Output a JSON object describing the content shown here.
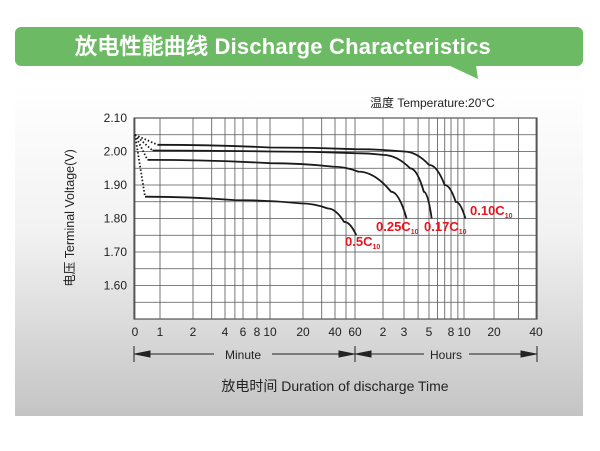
{
  "header": {
    "title": "放电性能曲线 Discharge Characteristics"
  },
  "colors": {
    "banner": "#6cbb64",
    "label_red": "#e8141c",
    "curve": "#1a1a1a"
  },
  "chart_data": {
    "type": "line",
    "temperature_note": "温度  Temperature:20°C",
    "ylabel": "电压 Terminal Voltage(V)",
    "xlabel": "放电时间  Duration of discharge Time",
    "x_unit_minute": "Minute",
    "x_unit_hours": "Hours",
    "ylim": [
      1.5,
      2.1
    ],
    "y_ticks": [
      "2.10",
      "2.00",
      "1.90",
      "1.80",
      "1.70",
      "1.60"
    ],
    "x_scale": "logarithmic-style (minutes then hours)",
    "x_ticks_minutes": [
      0,
      1,
      2,
      4,
      6,
      8,
      10,
      20,
      40,
      60,
      120,
      180,
      300,
      480,
      600,
      1200,
      2400
    ],
    "x_tick_labels": [
      "0",
      "1",
      "2",
      "4",
      "6",
      "8",
      "10",
      "20",
      "40",
      "60",
      "2",
      "3",
      "5",
      "8",
      "10",
      "20",
      "40"
    ],
    "grid": true,
    "series": [
      {
        "name": "0.10C",
        "subscript": "10",
        "initial": [
          [
            0,
            2.05
          ],
          [
            0.9,
            2.02
          ]
        ],
        "points": [
          [
            0.9,
            2.02
          ],
          [
            10,
            2.012
          ],
          [
            60,
            2.007
          ],
          [
            180,
            2.0
          ],
          [
            300,
            1.96
          ],
          [
            420,
            1.9
          ],
          [
            520,
            1.85
          ],
          [
            620,
            1.8
          ]
        ]
      },
      {
        "name": "0.17C",
        "subscript": "10",
        "initial": [
          [
            0,
            2.05
          ],
          [
            0.7,
            2.003
          ]
        ],
        "points": [
          [
            0.7,
            2.003
          ],
          [
            10,
            2.0
          ],
          [
            60,
            1.995
          ],
          [
            120,
            1.99
          ],
          [
            204,
            1.95
          ],
          [
            270,
            1.88
          ],
          [
            318,
            1.8
          ]
        ]
      },
      {
        "name": "0.25C",
        "subscript": "10",
        "initial": [
          [
            0,
            2.05
          ],
          [
            0.5,
            1.975
          ]
        ],
        "points": [
          [
            0.5,
            1.975
          ],
          [
            10,
            1.965
          ],
          [
            38,
            1.955
          ],
          [
            65,
            1.94
          ],
          [
            140,
            1.88
          ],
          [
            190,
            1.8
          ]
        ]
      },
      {
        "name": "0.5C",
        "subscript": "10",
        "initial": [
          [
            0,
            2.05
          ],
          [
            0.4,
            1.865
          ]
        ],
        "points": [
          [
            0.4,
            1.865
          ],
          [
            5,
            1.855
          ],
          [
            19,
            1.845
          ],
          [
            34,
            1.83
          ],
          [
            48,
            1.79
          ],
          [
            62,
            1.75
          ]
        ]
      }
    ]
  }
}
